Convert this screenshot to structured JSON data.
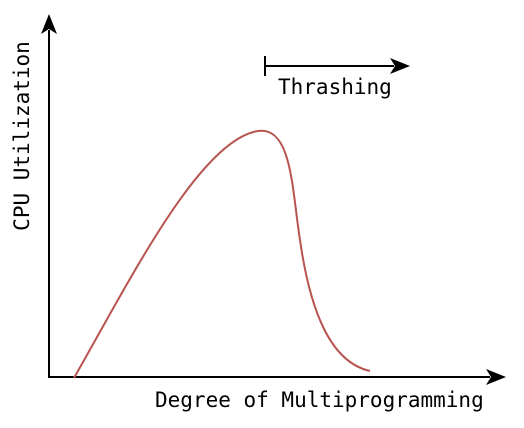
{
  "axes": {
    "y_label": "CPU Utilization",
    "x_label": "Degree of Multiprogramming"
  },
  "annotation": {
    "label": "Thrashing"
  }
}
